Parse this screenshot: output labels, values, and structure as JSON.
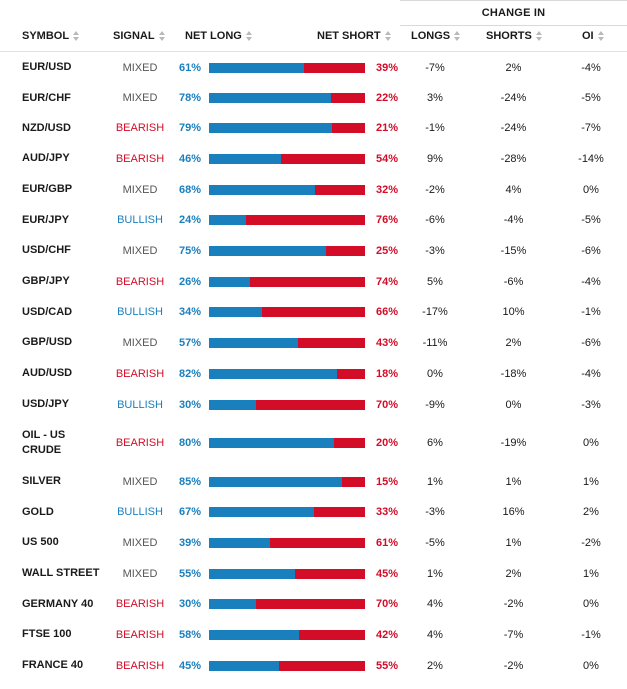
{
  "header": {
    "change_in": "CHANGE IN",
    "symbol": "SYMBOL",
    "signal": "SIGNAL",
    "net_long": "NET LONG",
    "net_short": "NET SHORT",
    "longs": "LONGS",
    "shorts": "SHORTS",
    "oi": "OI"
  },
  "colors": {
    "long": "#1a7fbd",
    "short": "#d30c27",
    "mixed": "#555555"
  },
  "rows": [
    {
      "symbol": "EUR/USD",
      "signal": "MIXED",
      "net_long": "61%",
      "long_value": 61,
      "net_short": "39%",
      "longs": "-7%",
      "shorts": "2%",
      "oi": "-4%"
    },
    {
      "symbol": "EUR/CHF",
      "signal": "MIXED",
      "net_long": "78%",
      "long_value": 78,
      "net_short": "22%",
      "longs": "3%",
      "shorts": "-24%",
      "oi": "-5%"
    },
    {
      "symbol": "NZD/USD",
      "signal": "BEARISH",
      "net_long": "79%",
      "long_value": 79,
      "net_short": "21%",
      "longs": "-1%",
      "shorts": "-24%",
      "oi": "-7%"
    },
    {
      "symbol": "AUD/JPY",
      "signal": "BEARISH",
      "net_long": "46%",
      "long_value": 46,
      "net_short": "54%",
      "longs": "9%",
      "shorts": "-28%",
      "oi": "-14%"
    },
    {
      "symbol": "EUR/GBP",
      "signal": "MIXED",
      "net_long": "68%",
      "long_value": 68,
      "net_short": "32%",
      "longs": "-2%",
      "shorts": "4%",
      "oi": "0%"
    },
    {
      "symbol": "EUR/JPY",
      "signal": "BULLISH",
      "net_long": "24%",
      "long_value": 24,
      "net_short": "76%",
      "longs": "-6%",
      "shorts": "-4%",
      "oi": "-5%"
    },
    {
      "symbol": "USD/CHF",
      "signal": "MIXED",
      "net_long": "75%",
      "long_value": 75,
      "net_short": "25%",
      "longs": "-3%",
      "shorts": "-15%",
      "oi": "-6%"
    },
    {
      "symbol": "GBP/JPY",
      "signal": "BEARISH",
      "net_long": "26%",
      "long_value": 26,
      "net_short": "74%",
      "longs": "5%",
      "shorts": "-6%",
      "oi": "-4%"
    },
    {
      "symbol": "USD/CAD",
      "signal": "BULLISH",
      "net_long": "34%",
      "long_value": 34,
      "net_short": "66%",
      "longs": "-17%",
      "shorts": "10%",
      "oi": "-1%"
    },
    {
      "symbol": "GBP/USD",
      "signal": "MIXED",
      "net_long": "57%",
      "long_value": 57,
      "net_short": "43%",
      "longs": "-11%",
      "shorts": "2%",
      "oi": "-6%"
    },
    {
      "symbol": "AUD/USD",
      "signal": "BEARISH",
      "net_long": "82%",
      "long_value": 82,
      "net_short": "18%",
      "longs": "0%",
      "shorts": "-18%",
      "oi": "-4%"
    },
    {
      "symbol": "USD/JPY",
      "signal": "BULLISH",
      "net_long": "30%",
      "long_value": 30,
      "net_short": "70%",
      "longs": "-9%",
      "shorts": "0%",
      "oi": "-3%"
    },
    {
      "symbol": "OIL - US CRUDE",
      "signal": "BEARISH",
      "net_long": "80%",
      "long_value": 80,
      "net_short": "20%",
      "longs": "6%",
      "shorts": "-19%",
      "oi": "0%"
    },
    {
      "symbol": "SILVER",
      "signal": "MIXED",
      "net_long": "85%",
      "long_value": 85,
      "net_short": "15%",
      "longs": "1%",
      "shorts": "1%",
      "oi": "1%"
    },
    {
      "symbol": "GOLD",
      "signal": "BULLISH",
      "net_long": "67%",
      "long_value": 67,
      "net_short": "33%",
      "longs": "-3%",
      "shorts": "16%",
      "oi": "2%"
    },
    {
      "symbol": "US 500",
      "signal": "MIXED",
      "net_long": "39%",
      "long_value": 39,
      "net_short": "61%",
      "longs": "-5%",
      "shorts": "1%",
      "oi": "-2%"
    },
    {
      "symbol": "WALL STREET",
      "signal": "MIXED",
      "net_long": "55%",
      "long_value": 55,
      "net_short": "45%",
      "longs": "1%",
      "shorts": "2%",
      "oi": "1%"
    },
    {
      "symbol": "GERMANY 40",
      "signal": "BEARISH",
      "net_long": "30%",
      "long_value": 30,
      "net_short": "70%",
      "longs": "4%",
      "shorts": "-2%",
      "oi": "0%"
    },
    {
      "symbol": "FTSE 100",
      "signal": "BEARISH",
      "net_long": "58%",
      "long_value": 58,
      "net_short": "42%",
      "longs": "4%",
      "shorts": "-7%",
      "oi": "-1%"
    },
    {
      "symbol": "FRANCE 40",
      "signal": "BEARISH",
      "net_long": "45%",
      "long_value": 45,
      "net_short": "55%",
      "longs": "2%",
      "shorts": "-2%",
      "oi": "0%"
    }
  ]
}
